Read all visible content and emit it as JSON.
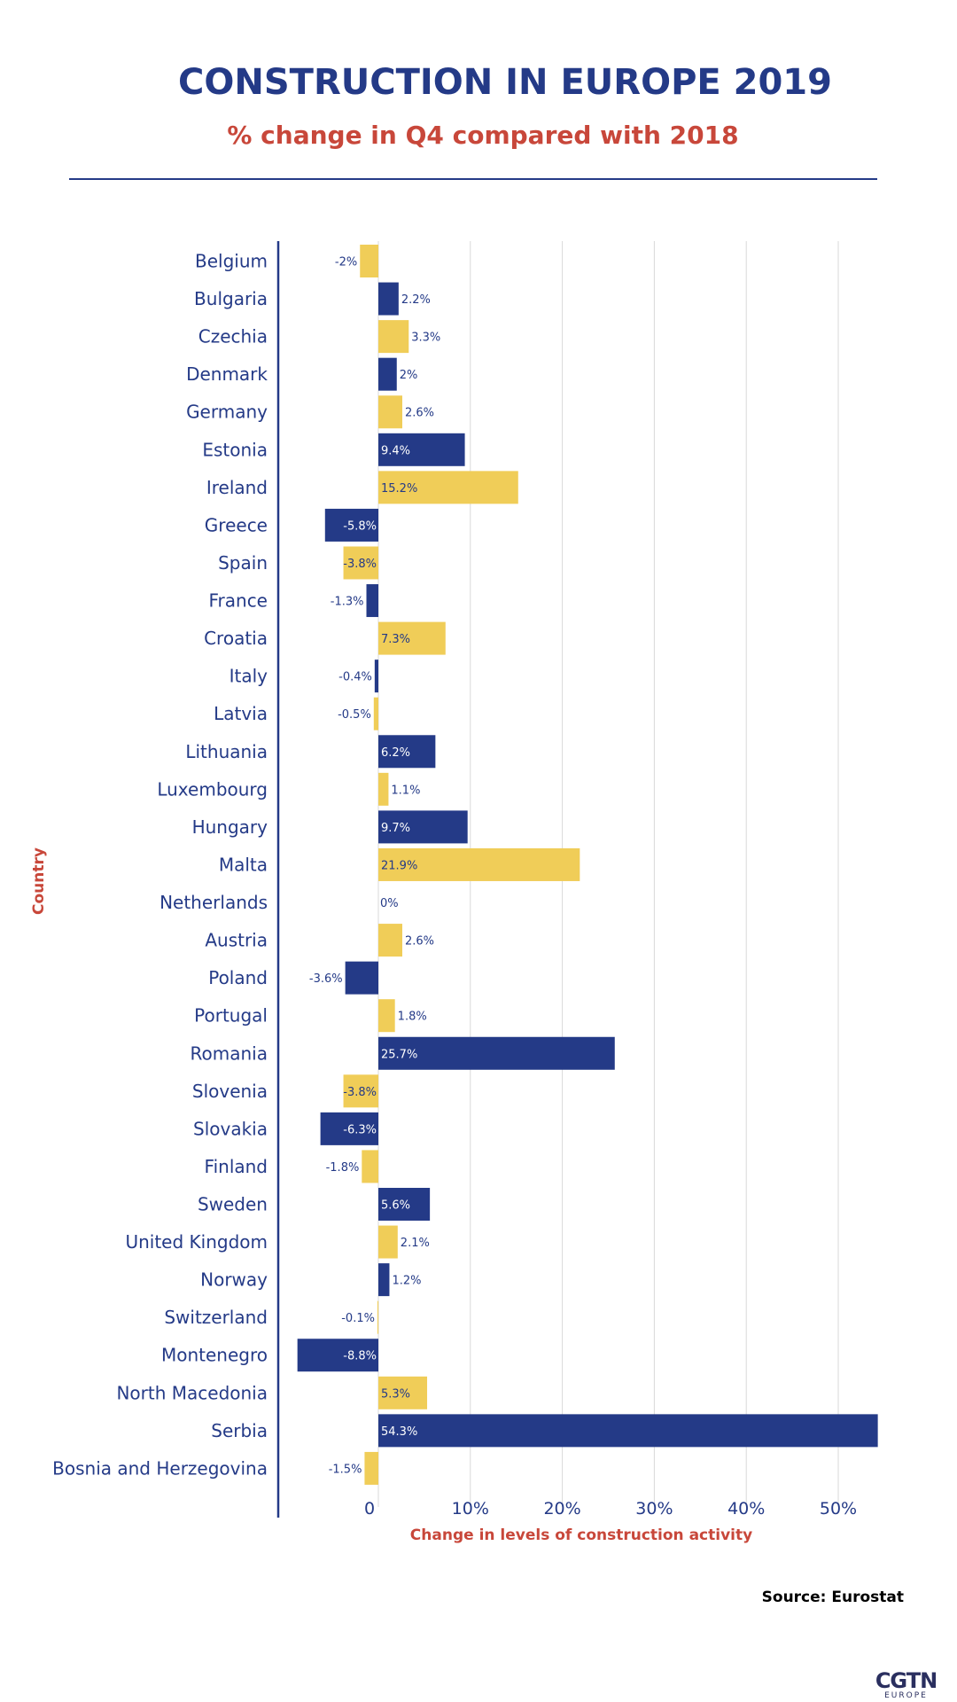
{
  "title": "CONSTRUCTION IN EUROPE 2019",
  "subtitle": "% change in Q4 compared with 2018",
  "source": "Source: Eurostat",
  "logo": {
    "main": "CGTN",
    "sub": "EUROPE"
  },
  "colors": {
    "navy": "#243a87",
    "gold": "#f0cd58",
    "accent": "#c8473a",
    "grid": "#d9d9d9"
  },
  "chart_data": {
    "type": "bar",
    "orientation": "horizontal",
    "xlabel": "Change in levels of construction activity",
    "ylabel": "Country",
    "xlim": [
      -10,
      55
    ],
    "xticks": [
      0,
      10,
      20,
      30,
      40,
      50
    ],
    "xtick_labels": [
      "0",
      "10%",
      "20%",
      "30%",
      "40%",
      "50%"
    ],
    "grid": true,
    "bar_colors_alternating": [
      "gold",
      "navy"
    ],
    "categories": [
      "Belgium",
      "Bulgaria",
      "Czechia",
      "Denmark",
      "Germany",
      "Estonia",
      "Ireland",
      "Greece",
      "Spain",
      "France",
      "Croatia",
      "Italy",
      "Latvia",
      "Lithuania",
      "Luxembourg",
      "Hungary",
      "Malta",
      "Netherlands",
      "Austria",
      "Poland",
      "Portugal",
      "Romania",
      "Slovenia",
      "Slovakia",
      "Finland",
      "Sweden",
      "United Kingdom",
      "Norway",
      "Switzerland",
      "Montenegro",
      "North Macedonia",
      "Serbia",
      "Bosnia and Herzegovina"
    ],
    "values": [
      -2,
      2.2,
      3.3,
      2,
      2.6,
      9.4,
      15.2,
      -5.8,
      -3.8,
      -1.3,
      7.3,
      -0.4,
      -0.5,
      6.2,
      1.1,
      9.7,
      21.9,
      0,
      2.6,
      -3.6,
      1.8,
      25.7,
      -3.8,
      -6.3,
      -1.8,
      5.6,
      2.1,
      1.2,
      -0.1,
      -8.8,
      5.3,
      54.3,
      -1.5
    ],
    "value_labels": [
      "-2%",
      "2.2%",
      "3.3%",
      "2%",
      "2.6%",
      "9.4%",
      "15.2%",
      "-5.8%",
      "-3.8%",
      "-1.3%",
      "7.3%",
      "-0.4%",
      "-0.5%",
      "6.2%",
      "1.1%",
      "9.7%",
      "21.9%",
      "0%",
      "2.6%",
      "-3.6%",
      "1.8%",
      "25.7%",
      "-3.8%",
      "-6.3%",
      "-1.8%",
      "5.6%",
      "2.1%",
      "1.2%",
      "-0.1%",
      "-8.8%",
      "5.3%",
      "54.3%",
      "-1.5%"
    ]
  }
}
